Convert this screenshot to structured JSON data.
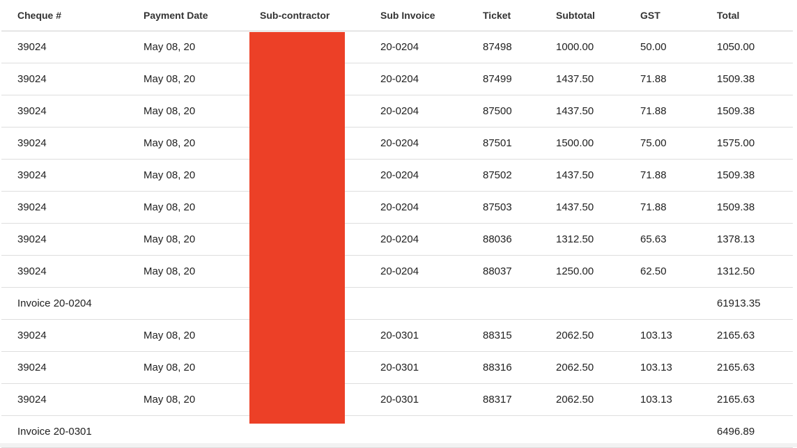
{
  "table": {
    "headers": [
      "Cheque #",
      "Payment Date",
      "Sub-contractor",
      "Sub Invoice",
      "Ticket",
      "Subtotal",
      "GST",
      "Total"
    ],
    "rows": [
      [
        "39024",
        "May 08, 20",
        "",
        "20-0204",
        "87498",
        "1000.00",
        "50.00",
        "1050.00"
      ],
      [
        "39024",
        "May 08, 20",
        "",
        "20-0204",
        "87499",
        "1437.50",
        "71.88",
        "1509.38"
      ],
      [
        "39024",
        "May 08, 20",
        "",
        "20-0204",
        "87500",
        "1437.50",
        "71.88",
        "1509.38"
      ],
      [
        "39024",
        "May 08, 20",
        "",
        "20-0204",
        "87501",
        "1500.00",
        "75.00",
        "1575.00"
      ],
      [
        "39024",
        "May 08, 20",
        "",
        "20-0204",
        "87502",
        "1437.50",
        "71.88",
        "1509.38"
      ],
      [
        "39024",
        "May 08, 20",
        "",
        "20-0204",
        "87503",
        "1437.50",
        "71.88",
        "1509.38"
      ],
      [
        "39024",
        "May 08, 20",
        "",
        "20-0204",
        "88036",
        "1312.50",
        "65.63",
        "1378.13"
      ],
      [
        "39024",
        "May 08, 20",
        "",
        "20-0204",
        "88037",
        "1250.00",
        "62.50",
        "1312.50"
      ],
      [
        "Invoice 20-0204",
        "",
        "",
        "",
        "",
        "",
        "",
        "61913.35"
      ],
      [
        "39024",
        "May 08, 20",
        "",
        "20-0301",
        "88315",
        "2062.50",
        "103.13",
        "2165.63"
      ],
      [
        "39024",
        "May 08, 20",
        "",
        "20-0301",
        "88316",
        "2062.50",
        "103.13",
        "2165.63"
      ],
      [
        "39024",
        "May 08, 20",
        "",
        "20-0301",
        "88317",
        "2062.50",
        "103.13",
        "2165.63"
      ],
      [
        "Invoice 20-0301",
        "",
        "",
        "",
        "",
        "",
        "",
        "6496.89"
      ]
    ]
  },
  "redaction_color": "#ec4027"
}
